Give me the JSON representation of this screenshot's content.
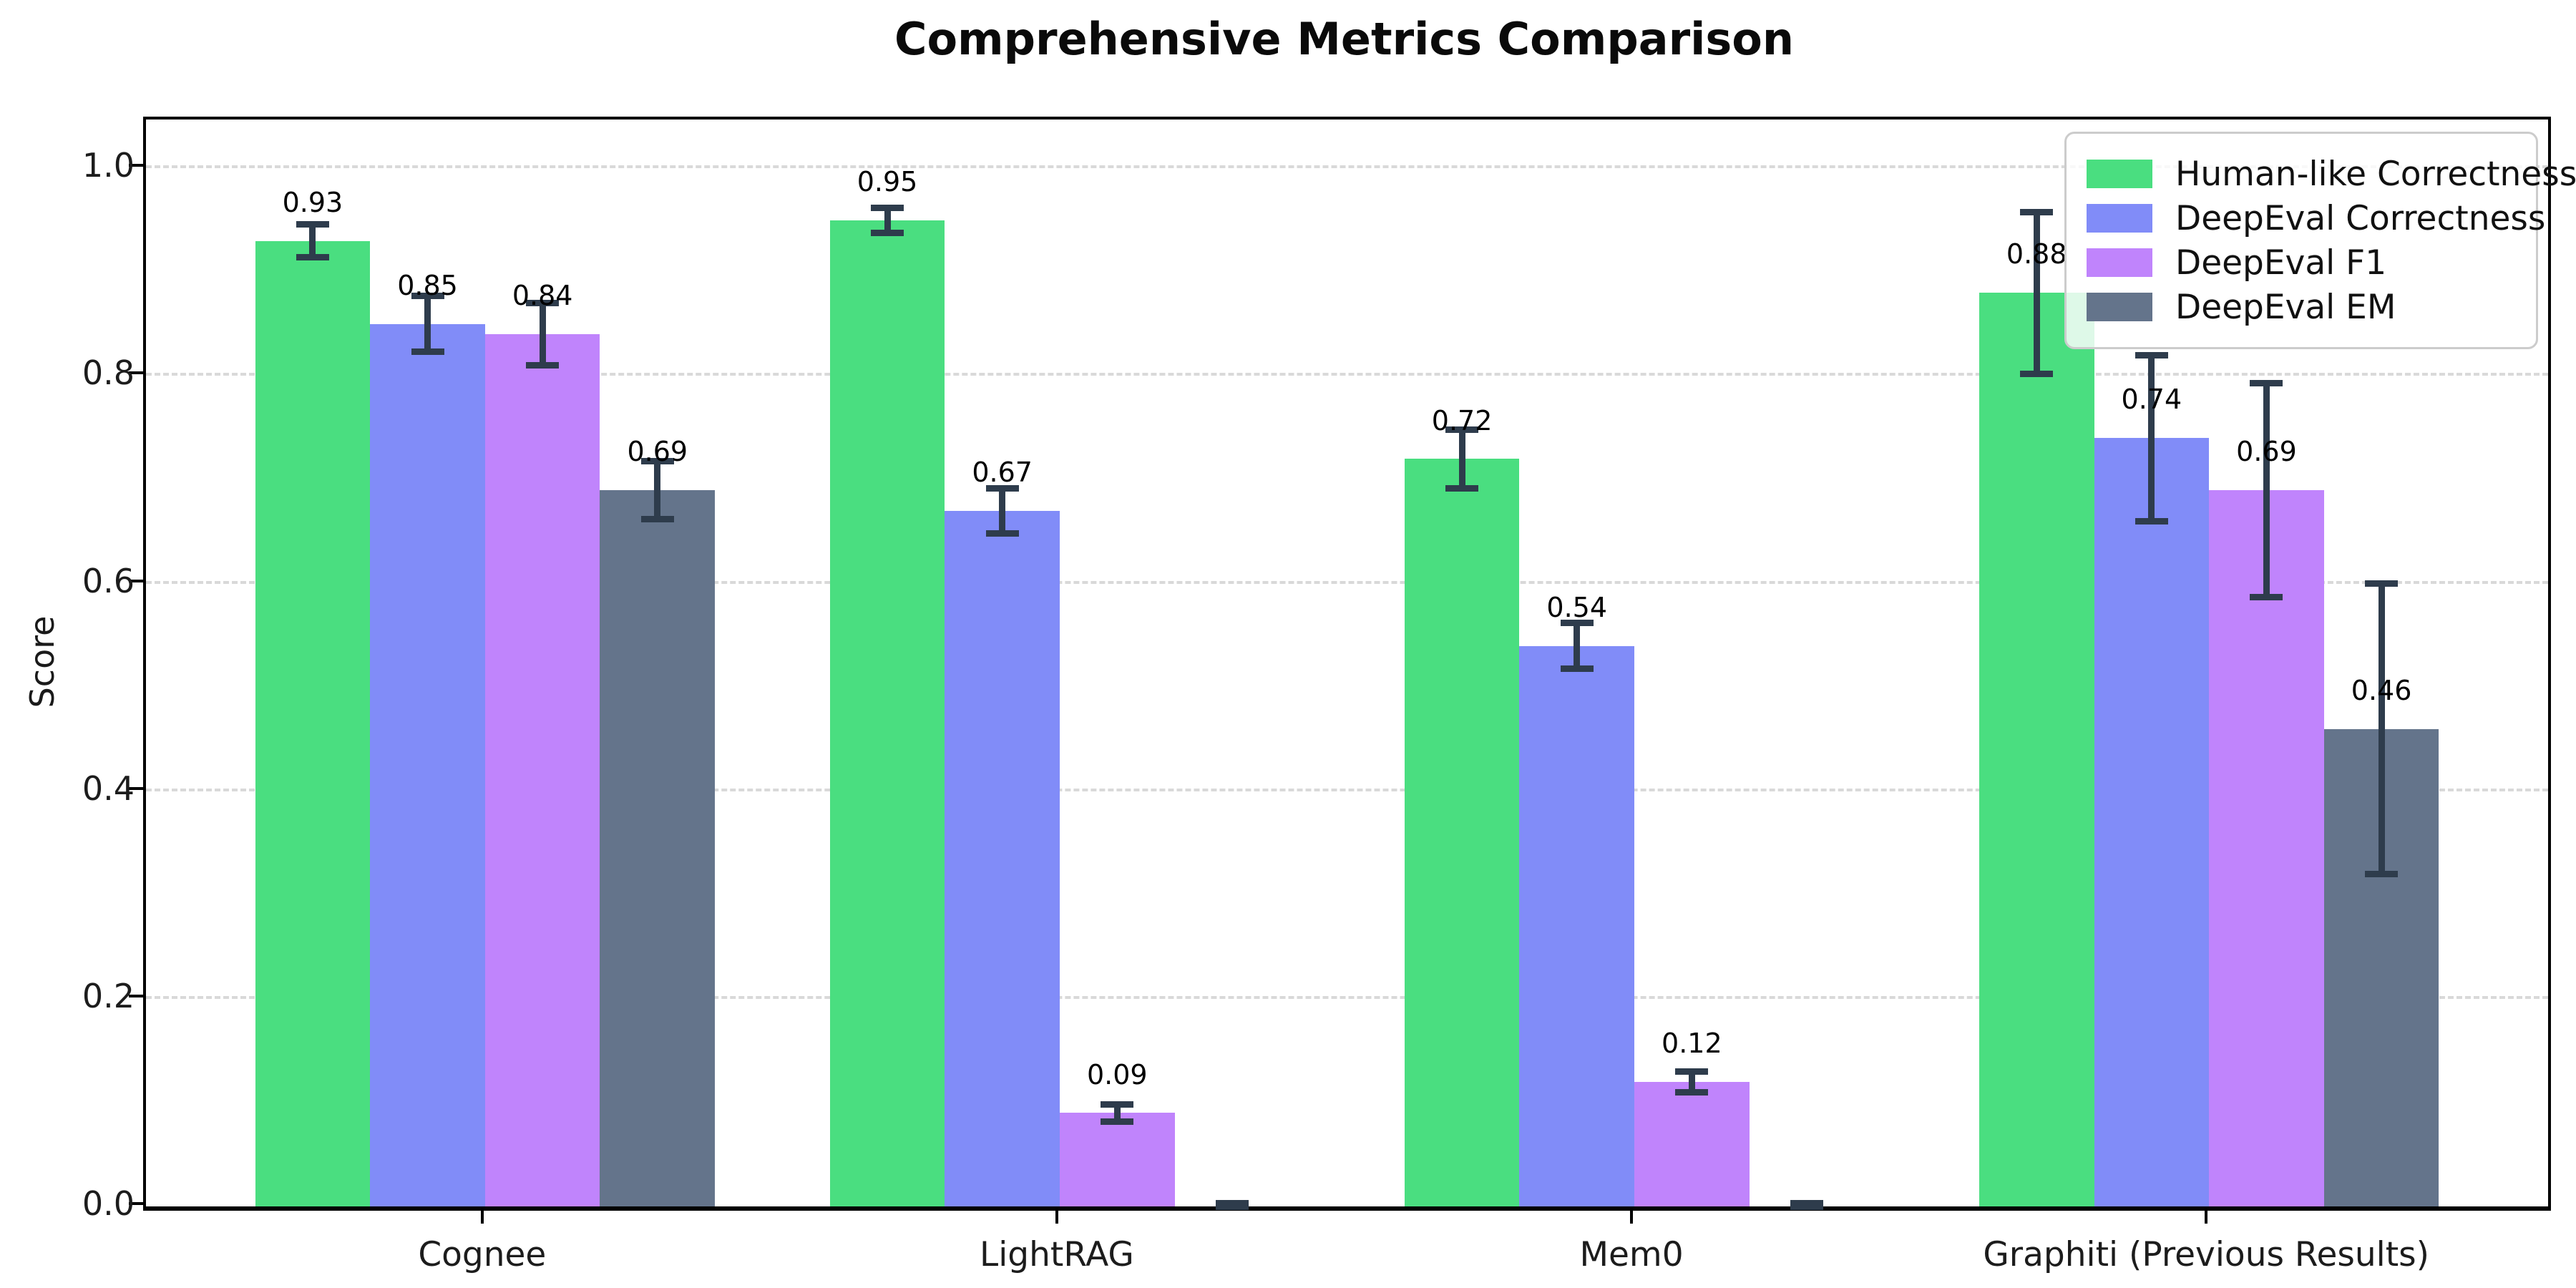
{
  "chart_data": {
    "type": "bar",
    "title": "Comprehensive Metrics Comparison",
    "xlabel": "",
    "ylabel": "Score",
    "categories": [
      "Cognee",
      "LightRAG",
      "Mem0",
      "Graphiti (Previous Results)"
    ],
    "series": [
      {
        "name": "Human-like Correctness",
        "color": "#4ade80",
        "values": [
          0.93,
          0.95,
          0.72,
          0.88
        ],
        "errors": [
          0.016,
          0.012,
          0.028,
          0.078
        ],
        "labels": [
          "0.93",
          "0.95",
          "0.72",
          "0.88"
        ]
      },
      {
        "name": "DeepEval Correctness",
        "color": "#818cf8",
        "values": [
          0.85,
          0.67,
          0.54,
          0.74
        ],
        "errors": [
          0.027,
          0.022,
          0.022,
          0.08
        ],
        "labels": [
          "0.85",
          "0.67",
          "0.54",
          "0.74"
        ]
      },
      {
        "name": "DeepEval F1",
        "color": "#c084fc",
        "values": [
          0.84,
          0.09,
          0.12,
          0.69
        ],
        "errors": [
          0.03,
          0.008,
          0.01,
          0.103
        ],
        "labels": [
          "0.84",
          "0.09",
          "0.12",
          "0.69"
        ]
      },
      {
        "name": "DeepEval EM",
        "color": "#64748b",
        "values": [
          0.69,
          0.0,
          0.0,
          0.46
        ],
        "errors": [
          0.028,
          0.003,
          0.003,
          0.14
        ],
        "labels": [
          "0.69",
          "",
          "",
          "0.46"
        ]
      }
    ],
    "yticks": [
      {
        "value": 0.0,
        "label": "0.0"
      },
      {
        "value": 0.2,
        "label": "0.2"
      },
      {
        "value": 0.4,
        "label": "0.4"
      },
      {
        "value": 0.6,
        "label": "0.6"
      },
      {
        "value": 0.8,
        "label": "0.8"
      },
      {
        "value": 1.0,
        "label": "1.0"
      }
    ],
    "ylim": [
      0,
      1.047
    ],
    "grid": "horizontal-dashed",
    "legend_position": "upper right",
    "error_bar_color": "#2e3c4c"
  }
}
